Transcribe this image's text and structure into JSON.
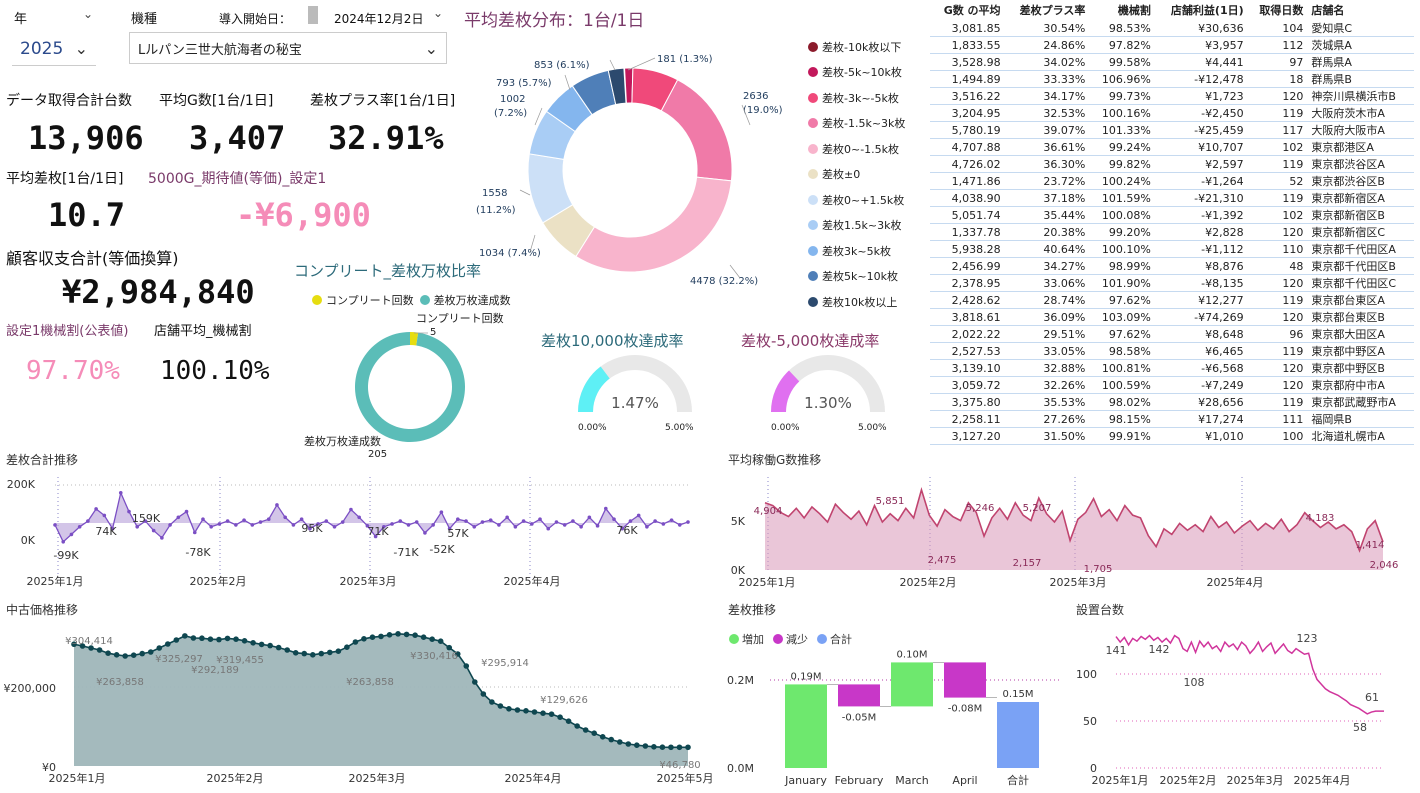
{
  "slicers": {
    "year_label": "年",
    "year_value": "2025",
    "machine_label": "機種",
    "machine_value": "Lルパン三世大航海者の秘宝",
    "start_date_label": "導入開始日：",
    "start_date_value": "2024年12月2日"
  },
  "kpi": {
    "data_total_label": "データ取得合計台数",
    "data_total_value": "13,906",
    "avg_g_label": "平均G数[1台/1日]",
    "avg_g_value": "3,407",
    "plus_rate_label": "差枚プラス率[1台/1日]",
    "plus_rate_value": "32.91%",
    "avg_diff_label": "平均差枚[1台/1日]",
    "avg_diff_value": "10.7",
    "expected_label": "5000G_期待値(等価)_設定1",
    "expected_value": "-¥6,900",
    "customer_label": "顧客収支合計(等価換算)",
    "customer_value": "¥2,984,840",
    "setting1_label": "設定1機械割(公表値)",
    "setting1_value": "97.70%",
    "store_avg_label": "店舗平均_機械割",
    "store_avg_value": "100.10%"
  },
  "donut_main": {
    "title": "平均差枚分布：1台/1日",
    "labels": [
      "181 (1.3%)",
      "2636",
      "(19.0%)",
      "4478 (32.2%)",
      "1034 (7.4%)",
      "1558",
      "(11.2%)",
      "1002",
      "(7.2%)",
      "793 (5.7%)",
      "853 (6.1%)"
    ],
    "legend": [
      {
        "label": "差枚-10k枚以下",
        "color": "#8b1a2b"
      },
      {
        "label": "差枚-5k~10k枚",
        "color": "#c2185b"
      },
      {
        "label": "差枚-3k~-5k枚",
        "color": "#f0497a"
      },
      {
        "label": "差枚-1.5k~3k枚",
        "color": "#f07aa8"
      },
      {
        "label": "差枚0~-1.5k枚",
        "color": "#f8b4cc"
      },
      {
        "label": "差枚±0",
        "color": "#ebe1c5"
      },
      {
        "label": "差枚0~+1.5k枚",
        "color": "#cce0f7"
      },
      {
        "label": "差枚1.5k~3k枚",
        "color": "#a9cdf5"
      },
      {
        "label": "差枚3k~5k枚",
        "color": "#84b6ee"
      },
      {
        "label": "差枚5k~10k枚",
        "color": "#4f7fb8"
      },
      {
        "label": "差枚10k枚以上",
        "color": "#2c4a6e"
      }
    ],
    "values": [
      15,
      181,
      1013,
      2636,
      4478,
      1034,
      1558,
      1002,
      793,
      853,
      343
    ]
  },
  "complete": {
    "title": "コンプリート_差枚万枚比率",
    "legend1": "コンプリート回数",
    "legend2": "差枚万枚達成数",
    "label_top": "コンプリート回数",
    "label_top_value": "5",
    "label_bottom": "差枚万枚達成数",
    "label_bottom_value": "205",
    "values": [
      5,
      205
    ]
  },
  "gauge1": {
    "title": "差枚10,000枚達成率",
    "value_text": "1.47%",
    "min": "0.00%",
    "max": "5.00%",
    "fraction": 0.294,
    "color": "#5ef0f5"
  },
  "gauge2": {
    "title": "差枚-5,000枚達成率",
    "value_text": "1.30%",
    "min": "0.00%",
    "max": "5.00%",
    "fraction": 0.26,
    "color": "#e070f0"
  },
  "table": {
    "headers": [
      "G数 の平均",
      "差枚プラス率",
      "機械割",
      "店舗利益(1日)",
      "取得日数",
      "店舗名"
    ],
    "rows": [
      [
        "3,081.85",
        "30.54%",
        "98.53%",
        "¥30,636",
        "104",
        "愛知県C"
      ],
      [
        "1,833.55",
        "24.86%",
        "97.82%",
        "¥3,957",
        "112",
        "茨城県A"
      ],
      [
        "3,528.98",
        "34.02%",
        "99.58%",
        "¥4,441",
        "97",
        "群馬県A"
      ],
      [
        "1,494.89",
        "33.33%",
        "106.96%",
        "-¥12,478",
        "18",
        "群馬県B"
      ],
      [
        "3,516.22",
        "34.17%",
        "99.73%",
        "¥1,723",
        "120",
        "神奈川県横浜市B"
      ],
      [
        "3,204.95",
        "32.53%",
        "100.16%",
        "-¥2,450",
        "119",
        "大阪府茨木市A"
      ],
      [
        "5,780.19",
        "39.07%",
        "101.33%",
        "-¥25,459",
        "117",
        "大阪府大阪市A"
      ],
      [
        "4,707.88",
        "36.61%",
        "99.24%",
        "¥10,707",
        "102",
        "東京都港区A"
      ],
      [
        "4,726.02",
        "36.30%",
        "99.82%",
        "¥2,597",
        "119",
        "東京都渋谷区A"
      ],
      [
        "1,471.86",
        "23.72%",
        "100.24%",
        "-¥1,264",
        "52",
        "東京都渋谷区B"
      ],
      [
        "4,038.90",
        "37.18%",
        "101.59%",
        "-¥21,310",
        "119",
        "東京都新宿区A"
      ],
      [
        "5,051.74",
        "35.44%",
        "100.08%",
        "-¥1,392",
        "102",
        "東京都新宿区B"
      ],
      [
        "1,337.78",
        "20.38%",
        "99.20%",
        "¥2,828",
        "120",
        "東京都新宿区C"
      ],
      [
        "5,938.28",
        "40.64%",
        "100.10%",
        "-¥1,112",
        "110",
        "東京都千代田区A"
      ],
      [
        "2,456.99",
        "34.27%",
        "98.99%",
        "¥8,876",
        "48",
        "東京都千代田区B"
      ],
      [
        "2,378.95",
        "33.06%",
        "101.90%",
        "-¥8,135",
        "120",
        "東京都千代田区C"
      ],
      [
        "2,428.62",
        "28.74%",
        "97.62%",
        "¥12,277",
        "119",
        "東京都台東区A"
      ],
      [
        "3,818.61",
        "36.09%",
        "103.09%",
        "-¥74,269",
        "120",
        "東京都台東区B"
      ],
      [
        "2,022.22",
        "29.51%",
        "97.62%",
        "¥8,648",
        "96",
        "東京都大田区A"
      ],
      [
        "2,527.53",
        "33.05%",
        "98.58%",
        "¥6,465",
        "119",
        "東京都中野区A"
      ],
      [
        "3,139.10",
        "32.88%",
        "100.81%",
        "-¥6,568",
        "120",
        "東京都中野区B"
      ],
      [
        "3,059.72",
        "32.26%",
        "100.59%",
        "-¥7,249",
        "120",
        "東京都府中市A"
      ],
      [
        "3,375.80",
        "35.53%",
        "98.02%",
        "¥28,656",
        "119",
        "東京都武蔵野市A"
      ],
      [
        "2,258.11",
        "27.26%",
        "98.15%",
        "¥17,274",
        "111",
        "福岡県B"
      ],
      [
        "3,127.20",
        "31.50%",
        "99.91%",
        "¥1,010",
        "100",
        "北海道札幌市A"
      ]
    ]
  },
  "chart_data": [
    {
      "type": "area",
      "title": "差枚合計推移",
      "y_ticks": [
        "200K",
        "0K"
      ],
      "x_ticks": [
        "2025年1月",
        "2025年2月",
        "2025年3月",
        "2025年4月"
      ],
      "annotations": [
        "-99K",
        "74K",
        "159K",
        "-78K",
        "95K",
        "71K",
        "-71K",
        "-52K",
        "57K",
        "76K"
      ],
      "values": [
        -10,
        -99,
        -60,
        -20,
        10,
        74,
        40,
        -30,
        159,
        60,
        -20,
        10,
        -40,
        -78,
        -10,
        30,
        60,
        -50,
        20,
        -20,
        -5,
        10,
        -10,
        15,
        -10,
        5,
        20,
        95,
        30,
        -10,
        20,
        -30,
        -5,
        10,
        -20,
        5,
        71,
        30,
        -15,
        -71,
        -20,
        -5,
        10,
        -10,
        5,
        -52,
        -10,
        57,
        -30,
        20,
        10,
        -20,
        5,
        15,
        -10,
        30,
        -20,
        10,
        -5,
        20,
        -30,
        5,
        -10,
        10,
        -20,
        30,
        -15,
        76,
        20,
        -30,
        10,
        40,
        -20,
        10,
        -5,
        15,
        -10,
        5
      ]
    },
    {
      "type": "area",
      "title": "平均稼働G数推移",
      "y_ticks": [
        "5K",
        "0K"
      ],
      "x_ticks": [
        "2025年1月",
        "2025年2月",
        "2025年3月",
        "2025年4月"
      ],
      "annotations": [
        "4,904",
        "5,851",
        "2,475",
        "5,246",
        "2,157",
        "5,207",
        "1,705",
        "4,183",
        "1,414",
        "2,046"
      ],
      "values": [
        4904,
        4700,
        4200,
        3900,
        4500,
        3800,
        4600,
        4100,
        3500,
        4800,
        4200,
        3700,
        4300,
        3300,
        4700,
        3500,
        4100,
        3600,
        4500,
        3800,
        5851,
        4000,
        3200,
        4400,
        3900,
        3600,
        4900,
        4200,
        2475,
        3800,
        4500,
        3700,
        4900,
        4000,
        3600,
        5246,
        4100,
        3500,
        4300,
        2157,
        3700,
        4200,
        5207,
        3900,
        4400,
        3600,
        4700,
        4000,
        3800,
        2500,
        1705,
        3000,
        2600,
        3400,
        2900,
        3300,
        2800,
        3900,
        3100,
        3500,
        2700,
        3200,
        3600,
        2900,
        3400,
        3000,
        3700,
        2800,
        3300,
        4183,
        3600,
        3100,
        3500,
        3000,
        3300,
        2800,
        1414,
        3000,
        3600,
        2046
      ]
    },
    {
      "type": "area",
      "title": "中古価格推移",
      "y_ticks": [
        "¥200,000",
        "¥0"
      ],
      "x_ticks": [
        "2025年1月",
        "2025年2月",
        "2025年3月",
        "2025年4月",
        "2025年5月"
      ],
      "annotations": [
        "¥304,414",
        "¥263,858",
        "¥325,297",
        "¥292,189",
        "¥319,455",
        "¥263,858",
        "¥330,416",
        "¥295,914",
        "¥129,626",
        "¥46,780"
      ],
      "values": [
        304414,
        300000,
        295000,
        290000,
        282000,
        278000,
        275000,
        277000,
        281000,
        285000,
        295000,
        305000,
        315000,
        325297,
        320000,
        319455,
        317000,
        316000,
        319000,
        317000,
        313000,
        308000,
        304000,
        301000,
        296000,
        290000,
        283000,
        281000,
        278000,
        281000,
        284000,
        287000,
        297000,
        310000,
        318000,
        322000,
        324000,
        328000,
        330416,
        329000,
        327000,
        322000,
        317000,
        312000,
        295914,
        280000,
        250000,
        210000,
        180000,
        160000,
        150000,
        143000,
        140000,
        138000,
        135000,
        132000,
        129626,
        122000,
        112000,
        100000,
        90000,
        82000,
        73000,
        66000,
        60000,
        55000,
        52000,
        50000,
        48000,
        47000,
        46780,
        46780,
        46780
      ]
    },
    {
      "type": "bar",
      "title": "差枚推移",
      "legend": [
        "増加",
        "減少",
        "合計"
      ],
      "legend_colors": [
        "#6ee86e",
        "#c837c8",
        "#7aa2f5"
      ],
      "categories": [
        "January",
        "February",
        "March",
        "April",
        "合計"
      ],
      "values": [
        0.19,
        -0.05,
        0.1,
        -0.08,
        0.15
      ],
      "labels": [
        "0.19M",
        "-0.05M",
        "0.10M",
        "-0.08M",
        "0.15M"
      ],
      "y_ticks": [
        "0.2M",
        "0.0M"
      ]
    },
    {
      "type": "line",
      "title": "設置台数",
      "y_ticks": [
        "100",
        "50",
        "0"
      ],
      "x_ticks": [
        "2025年1月",
        "2025年2月",
        "2025年3月",
        "2025年4月"
      ],
      "annotations": [
        "141",
        "142",
        "108",
        "123",
        "61",
        "58"
      ],
      "values": [
        141,
        135,
        140,
        132,
        139,
        136,
        141,
        138,
        142,
        137,
        140,
        135,
        139,
        134,
        142,
        139,
        128,
        125,
        135,
        124,
        136,
        130,
        135,
        128,
        131,
        125,
        135,
        130,
        133,
        127,
        135,
        131,
        123,
        128,
        135,
        125,
        130,
        134,
        123,
        128,
        133,
        126,
        123,
        128,
        125,
        122,
        123,
        106,
        95,
        90,
        85,
        82,
        80,
        78,
        75,
        72,
        68,
        66,
        64,
        61,
        58,
        60,
        61,
        61,
        61
      ]
    }
  ]
}
